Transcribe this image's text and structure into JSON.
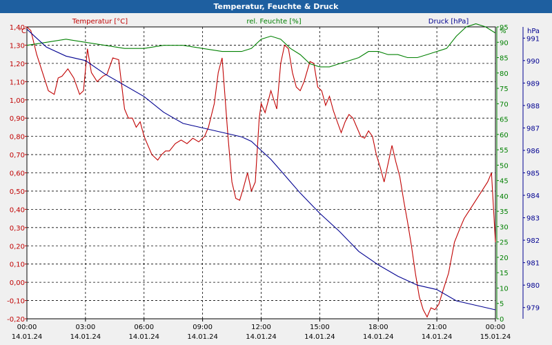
{
  "window": {
    "title": "Temperatur, Feuchte & Druck"
  },
  "chart_data": {
    "type": "line",
    "title": "Temperatur, Feuchte & Druck",
    "x_range_hours": [
      0,
      24
    ],
    "x_ticks": [
      {
        "h": 0,
        "time": "00:00",
        "date": "14.01.24"
      },
      {
        "h": 3,
        "time": "03:00",
        "date": "14.01.24"
      },
      {
        "h": 6,
        "time": "06:00",
        "date": "14.01.24"
      },
      {
        "h": 9,
        "time": "09:00",
        "date": "14.01.24"
      },
      {
        "h": 12,
        "time": "12:00",
        "date": "14.01.24"
      },
      {
        "h": 15,
        "time": "15:00",
        "date": "14.01.24"
      },
      {
        "h": 18,
        "time": "18:00",
        "date": "14.01.24"
      },
      {
        "h": 21,
        "time": "21:00",
        "date": "14.01.24"
      },
      {
        "h": 24,
        "time": "00:00",
        "date": "15.01.24"
      }
    ],
    "axes": {
      "temp": {
        "unit": "°C",
        "label": "Temperatur [°C]",
        "color": "#c00000",
        "min": -0.2,
        "max": 1.4,
        "ticks": [
          "-0,20",
          "-0,10",
          "0,00",
          "0,10",
          "0,20",
          "0,30",
          "0,40",
          "0,50",
          "0,60",
          "0,70",
          "0,80",
          "0,90",
          "1,00",
          "1,10",
          "1,20",
          "1,30",
          "1,40"
        ]
      },
      "hum": {
        "unit": "%",
        "label": "rel. Feuchte [%]",
        "color": "#008000",
        "min": 0,
        "max": 95,
        "ticks": [
          "0",
          "5",
          "10",
          "15",
          "20",
          "25",
          "30",
          "35",
          "40",
          "45",
          "50",
          "55",
          "60",
          "65",
          "70",
          "75",
          "80",
          "85",
          "90",
          "95"
        ]
      },
      "press": {
        "unit": "hPa",
        "label": "Druck [hPa]",
        "color": "#000090",
        "min": 978.5,
        "max": 991.5,
        "ticks": [
          "979",
          "980",
          "981",
          "982",
          "983",
          "984",
          "985",
          "986",
          "987",
          "988",
          "989",
          "990",
          "991"
        ]
      }
    },
    "series": [
      {
        "name": "Temperatur [°C]",
        "axis": "temp",
        "color": "#c00000",
        "x": [
          0,
          0.2,
          0.5,
          0.8,
          1.1,
          1.4,
          1.6,
          1.8,
          2.1,
          2.4,
          2.7,
          2.9,
          3.1,
          3.3,
          3.6,
          3.9,
          4.1,
          4.4,
          4.7,
          5.0,
          5.2,
          5.4,
          5.6,
          5.8,
          6.0,
          6.2,
          6.4,
          6.7,
          6.9,
          7.1,
          7.3,
          7.6,
          7.9,
          8.2,
          8.5,
          8.8,
          9.1,
          9.3,
          9.6,
          9.8,
          10.0,
          10.3,
          10.5,
          10.7,
          10.9,
          11.1,
          11.3,
          11.5,
          11.7,
          11.9,
          12.0,
          12.2,
          12.5,
          12.8,
          13.0,
          13.2,
          13.4,
          13.6,
          13.8,
          14.0,
          14.2,
          14.5,
          14.7,
          14.9,
          15.1,
          15.3,
          15.5,
          15.7,
          15.9,
          16.1,
          16.3,
          16.5,
          16.7,
          16.9,
          17.1,
          17.3,
          17.5,
          17.7,
          17.9,
          18.1,
          18.3,
          18.5,
          18.7,
          18.9,
          19.1,
          19.3,
          19.5,
          19.7,
          19.9,
          20.1,
          20.3,
          20.5,
          20.7,
          20.9,
          21.1,
          21.3,
          21.6,
          21.9,
          22.2,
          22.4,
          22.7,
          23.0,
          23.3,
          23.6,
          23.8,
          24.0
        ],
        "values": [
          1.4,
          1.38,
          1.25,
          1.15,
          1.05,
          1.03,
          1.12,
          1.13,
          1.17,
          1.12,
          1.03,
          1.05,
          1.28,
          1.15,
          1.1,
          1.13,
          1.14,
          1.23,
          1.22,
          0.95,
          0.9,
          0.9,
          0.85,
          0.88,
          0.8,
          0.75,
          0.7,
          0.67,
          0.7,
          0.72,
          0.72,
          0.76,
          0.78,
          0.76,
          0.79,
          0.77,
          0.8,
          0.85,
          0.98,
          1.15,
          1.23,
          0.8,
          0.55,
          0.46,
          0.45,
          0.52,
          0.6,
          0.5,
          0.55,
          0.9,
          0.98,
          0.93,
          1.05,
          0.95,
          1.2,
          1.3,
          1.28,
          1.15,
          1.07,
          1.05,
          1.1,
          1.21,
          1.2,
          1.07,
          1.05,
          0.97,
          1.02,
          0.94,
          0.88,
          0.82,
          0.88,
          0.92,
          0.9,
          0.85,
          0.8,
          0.79,
          0.83,
          0.8,
          0.7,
          0.63,
          0.55,
          0.65,
          0.75,
          0.66,
          0.58,
          0.45,
          0.33,
          0.2,
          0.05,
          -0.08,
          -0.15,
          -0.19,
          -0.14,
          -0.15,
          -0.12,
          -0.05,
          0.05,
          0.22,
          0.3,
          0.35,
          0.4,
          0.45,
          0.5,
          0.55,
          0.6,
          0.22
        ]
      },
      {
        "name": "rel. Feuchte [%]",
        "axis": "hum",
        "color": "#008000",
        "x": [
          0,
          1,
          2,
          3,
          4,
          5,
          6,
          7,
          8,
          9,
          10,
          11,
          11.5,
          12,
          12.5,
          13,
          13.5,
          14,
          14.5,
          15,
          15.5,
          16,
          16.5,
          17,
          17.5,
          18,
          18.5,
          19,
          19.5,
          20,
          20.5,
          21,
          21.5,
          22,
          22.5,
          23,
          23.5,
          24
        ],
        "values": [
          89,
          90,
          91,
          90,
          89,
          88,
          88,
          89,
          89,
          88,
          87,
          87,
          88,
          91,
          92,
          91,
          88,
          86,
          83,
          82,
          82,
          83,
          84,
          85,
          87,
          87,
          86,
          86,
          85,
          85,
          86,
          87,
          88,
          92,
          95,
          96,
          95,
          93
        ]
      },
      {
        "name": "Druck [hPa]",
        "axis": "press",
        "color": "#000090",
        "x": [
          0,
          0.5,
          1,
          2,
          3,
          4,
          5,
          6,
          7,
          8,
          9,
          10,
          11,
          11.5,
          12,
          12.5,
          13,
          13.5,
          14,
          15,
          16,
          17,
          18,
          19,
          20,
          21,
          22,
          23,
          24
        ],
        "values": [
          991.4,
          991,
          990.6,
          990.2,
          990.0,
          989.4,
          988.9,
          988.4,
          987.7,
          987.2,
          987.0,
          986.8,
          986.6,
          986.4,
          986.0,
          985.6,
          985.1,
          984.6,
          984.1,
          983.2,
          982.4,
          981.5,
          980.9,
          980.4,
          980.0,
          979.8,
          979.3,
          979.1,
          978.9
        ]
      }
    ]
  }
}
